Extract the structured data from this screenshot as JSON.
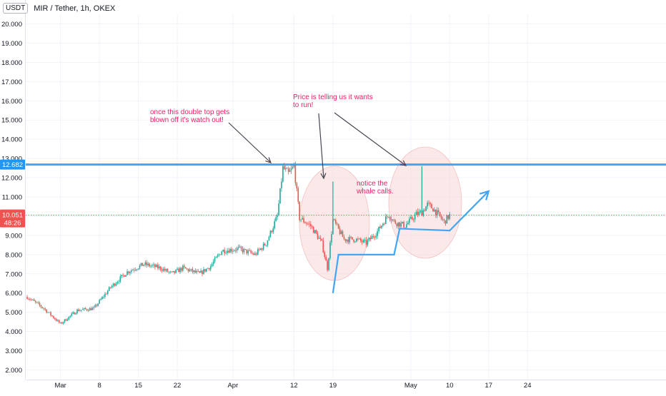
{
  "header": {
    "currency": "USDT",
    "title": "MIR / Tether, 1h, OKEX"
  },
  "colors": {
    "up": "#26a69a",
    "down": "#ef5350",
    "level_line": "#42a5f5",
    "annotation": "#e91e63",
    "arrow": "#434651",
    "circle_fill": "#f8d7d7",
    "badge_level": "#2196f3",
    "badge_price": "#ef5350"
  },
  "chart_data": {
    "type": "candlestick",
    "title": "MIR / Tether, 1h, OKEX",
    "ylim": [
      1.5,
      20.5
    ],
    "y_ticks": [
      "20.000",
      "19.000",
      "18.000",
      "17.000",
      "16.000",
      "15.000",
      "14.000",
      "13.000",
      "12.000",
      "11.000",
      "10.000",
      "9.000",
      "8.000",
      "7.000",
      "6.000",
      "5.000",
      "4.000",
      "3.000",
      "2.000"
    ],
    "x_ticks": [
      "Mar",
      "8",
      "15",
      "22",
      "Apr",
      "12",
      "19",
      "May",
      "10",
      "17",
      "24"
    ],
    "price_path": [
      [
        "Feb 23",
        5.8
      ],
      [
        "Feb 26",
        5.2
      ],
      [
        "Mar 1",
        4.4
      ],
      [
        "Mar 4",
        5.1
      ],
      [
        "Mar 7",
        5.2
      ],
      [
        "Mar 10",
        6.3
      ],
      [
        "Mar 13",
        7.1
      ],
      [
        "Mar 16",
        7.5
      ],
      [
        "Mar 19",
        7.3
      ],
      [
        "Mar 21",
        7.0
      ],
      [
        "Mar 23",
        7.3
      ],
      [
        "Mar 26",
        7.0
      ],
      [
        "Mar 28",
        7.4
      ],
      [
        "Mar 30",
        8.2
      ],
      [
        "Apr 2",
        8.3
      ],
      [
        "Apr 5",
        8.0
      ],
      [
        "Apr 7",
        8.6
      ],
      [
        "Apr 9",
        10.0
      ],
      [
        "Apr 10",
        12.5
      ],
      [
        "Apr 11",
        12.2
      ],
      [
        "Apr 12",
        12.6
      ],
      [
        "Apr 13",
        9.9
      ],
      [
        "Apr 15",
        9.5
      ],
      [
        "Apr 17",
        8.6
      ],
      [
        "Apr 18",
        7.3
      ],
      [
        "Apr 19",
        9.8
      ],
      [
        "Apr 21",
        8.8
      ],
      [
        "Apr 23",
        8.8
      ],
      [
        "Apr 25",
        8.6
      ],
      [
        "Apr 27",
        9.2
      ],
      [
        "Apr 29",
        10.1
      ],
      [
        "Apr 30",
        9.7
      ],
      [
        "May 2",
        9.5
      ],
      [
        "May 4",
        10.1
      ],
      [
        "May 5",
        10.2
      ],
      [
        "May 6",
        10.6
      ],
      [
        "May 7",
        10.4
      ],
      [
        "May 9",
        9.7
      ],
      [
        "May 10",
        10.05
      ]
    ],
    "spikes": [
      {
        "date": "Apr 19",
        "high": 11.8
      },
      {
        "date": "May 5",
        "high": 12.6
      }
    ],
    "horizontal_level": {
      "value": 12.682,
      "label": "12.682"
    },
    "current_price": {
      "value": 10.051,
      "label": "10.051",
      "countdown": "48:26"
    },
    "annotations": {
      "double_top": [
        "once this double top gets",
        "blown off it's watch out!"
      ],
      "price_running": [
        "Price is telling us it wants",
        "to run!"
      ],
      "whale_calls": [
        "notice the",
        "whale calls."
      ]
    },
    "drawn_path": [
      [
        "Apr 19",
        6.0
      ],
      [
        "Apr 20",
        8.0
      ],
      [
        "Apr 30",
        8.0
      ],
      [
        "May 1",
        9.35
      ],
      [
        "May 10",
        9.25
      ],
      [
        "May 17",
        11.3
      ]
    ]
  }
}
